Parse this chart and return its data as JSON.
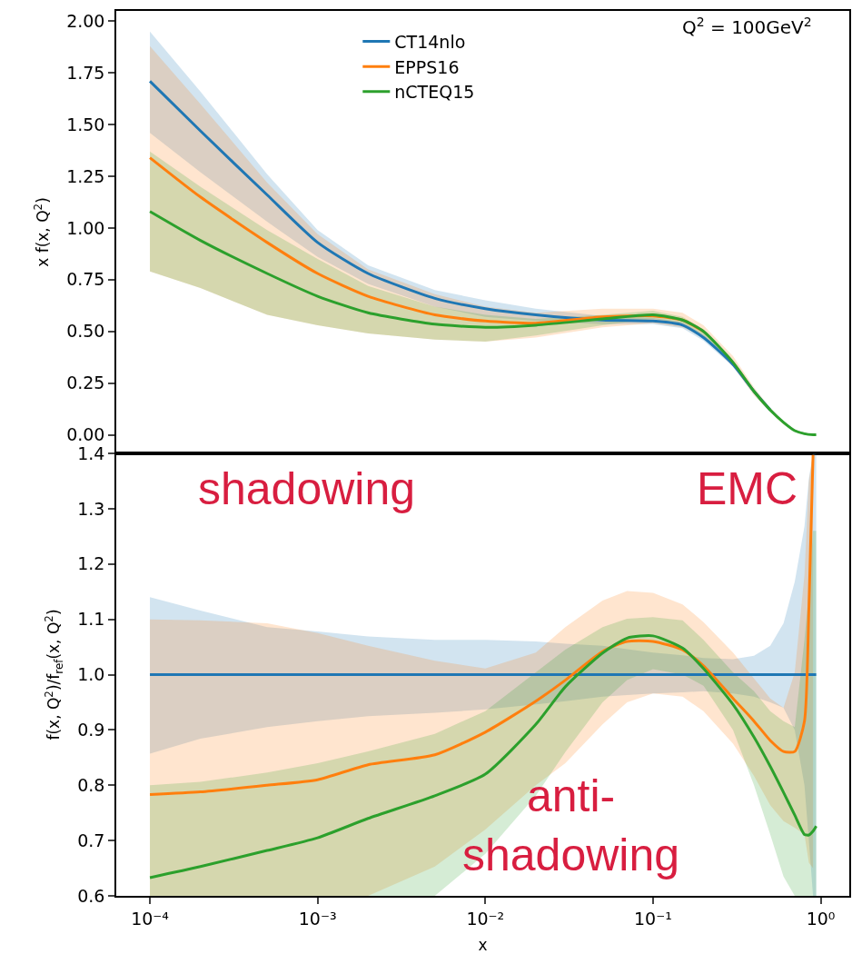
{
  "chart_data": [
    {
      "type": "line",
      "ylabel": "x f(x, Q$^{2}$)",
      "log": "x",
      "xlim": [
        6.3e-05,
        1.48
      ],
      "ylim": [
        -0.09,
        2.05
      ],
      "tick_labels": "y",
      "grid": false,
      "legend": "top",
      "line_style": "solid",
      "marker": "none",
      "yticks": [
        {
          "value": 0,
          "label": "0.00"
        },
        {
          "value": 0.25,
          "label": "0.25"
        },
        {
          "value": 0.5,
          "label": "0.50"
        },
        {
          "value": 0.75,
          "label": "0.75"
        },
        {
          "value": 1,
          "label": "1.00"
        },
        {
          "value": 1.25,
          "label": "1.25"
        },
        {
          "value": 1.5,
          "label": "1.50"
        },
        {
          "value": 1.75,
          "label": "1.75"
        },
        {
          "value": 2,
          "label": "2.00"
        }
      ],
      "annotations": [
        "Q$^{2}$ = 100GeV$^{2}$"
      ],
      "x": [
        0.0001,
        0.0002,
        0.0005,
        0.001,
        0.002,
        0.005,
        0.01,
        0.02,
        0.05,
        0.1,
        0.15,
        0.2,
        0.3,
        0.4,
        0.5,
        0.6,
        0.7,
        0.8,
        0.9,
        0.94
      ],
      "series": [
        {
          "name": "CT14nlo",
          "color": "#1f77b4",
          "values": [
            1.71,
            1.47,
            1.16,
            0.93,
            0.78,
            0.66,
            0.61,
            0.58,
            0.555,
            0.55,
            0.53,
            0.47,
            0.34,
            0.21,
            0.12,
            null,
            null,
            null,
            null,
            null
          ],
          "upper": [
            1.95,
            1.66,
            1.26,
            0.99,
            0.82,
            0.7,
            0.65,
            0.61,
            0.575,
            0.565,
            0.545,
            0.485,
            0.35,
            0.22,
            0.13,
            0.065,
            0.025,
            0.01,
            0,
            0
          ],
          "lower": [
            1.46,
            1.27,
            1.03,
            0.86,
            0.73,
            0.62,
            0.57,
            0.55,
            0.535,
            0.535,
            0.515,
            0.455,
            0.33,
            0.2,
            0.11,
            0.055,
            0.015,
            0,
            0,
            0
          ]
        },
        {
          "name": "EPPS16",
          "color": "#ff7f0e",
          "values": [
            1.34,
            1.15,
            0.93,
            0.78,
            0.67,
            0.58,
            0.55,
            0.54,
            0.57,
            0.575,
            0.555,
            0.5,
            null,
            null,
            null,
            null,
            null,
            null,
            null,
            null
          ],
          "upper": [
            1.88,
            1.6,
            1.22,
            0.97,
            0.8,
            0.68,
            0.62,
            0.59,
            0.61,
            0.61,
            0.59,
            0.53,
            0.38,
            0.23,
            0.13,
            0.065,
            0.025,
            0.01,
            0,
            0
          ],
          "lower": [
            0.79,
            0.71,
            0.58,
            0.53,
            0.49,
            0.46,
            0.45,
            0.47,
            0.52,
            0.54,
            0.52,
            0.47,
            0.33,
            0.19,
            0.11,
            0.05,
            0.015,
            0,
            0,
            0
          ]
        },
        {
          "name": "nCTEQ15",
          "color": "#2ca02c",
          "values": [
            1.08,
            0.94,
            0.78,
            0.67,
            0.59,
            0.535,
            0.52,
            0.53,
            0.56,
            0.58,
            0.555,
            0.5,
            0.35,
            0.21,
            0.12,
            0.06,
            0.02,
            0.005,
            0,
            0
          ],
          "upper": [
            1.37,
            1.2,
            0.99,
            0.85,
            0.72,
            0.62,
            0.58,
            0.56,
            0.58,
            0.6,
            0.57,
            0.51,
            0.36,
            0.22,
            0.13,
            0.065,
            0.025,
            0.01,
            0,
            0
          ],
          "lower": [
            0.79,
            0.71,
            0.58,
            0.53,
            0.49,
            0.46,
            0.45,
            0.48,
            0.53,
            0.56,
            0.54,
            0.48,
            0.34,
            0.2,
            0.11,
            0.055,
            0.015,
            0,
            0,
            0
          ]
        }
      ]
    },
    {
      "type": "line",
      "xlabel": "x",
      "ylabel": "f(x, Q$^{2}$)/f$_{ref}$(x, Q$^{2}$)",
      "log": "x",
      "xlim": [
        6.3e-05,
        1.48
      ],
      "ylim": [
        0.6,
        1.4
      ],
      "grid": false,
      "line_style": "solid",
      "marker": "none",
      "xticks": [
        {
          "value": 0.0001,
          "label": "10⁻⁴"
        },
        {
          "value": 0.001,
          "label": "10⁻³"
        },
        {
          "value": 0.01,
          "label": "10⁻²"
        },
        {
          "value": 0.1,
          "label": "10⁻¹"
        },
        {
          "value": 1,
          "label": "10⁰"
        }
      ],
      "yticks": [
        {
          "value": 0.6,
          "label": "0.6"
        },
        {
          "value": 0.7,
          "label": "0.7"
        },
        {
          "value": 0.8,
          "label": "0.8"
        },
        {
          "value": 0.9,
          "label": "0.9"
        },
        {
          "value": 1.0,
          "label": "1.0"
        },
        {
          "value": 1.1,
          "label": "1.1"
        },
        {
          "value": 1.2,
          "label": "1.2"
        },
        {
          "value": 1.3,
          "label": "1.3"
        },
        {
          "value": 1.4,
          "label": "1.4"
        }
      ],
      "annotations": [
        "shadowing",
        "EMC",
        "anti-\nshadowing"
      ],
      "x": [
        0.0001,
        0.0002,
        0.0005,
        0.001,
        0.002,
        0.005,
        0.01,
        0.02,
        0.03,
        0.05,
        0.07,
        0.1,
        0.15,
        0.2,
        0.3,
        0.4,
        0.5,
        0.6,
        0.7,
        0.8,
        0.85,
        0.9,
        0.94
      ],
      "series": [
        {
          "color": "#1f77b4",
          "values": [
            1,
            1,
            1,
            1,
            1,
            1,
            1,
            1,
            1,
            1,
            1,
            1,
            1,
            1,
            1,
            1,
            1,
            1,
            1,
            1,
            1,
            1,
            1
          ],
          "upper": [
            1.14,
            1.116,
            1.086,
            1.078,
            1.069,
            1.063,
            1.063,
            1.06,
            1.056,
            1.052,
            1.046,
            1.04,
            1.035,
            1.03,
            1.028,
            1.034,
            1.052,
            1.093,
            1.168,
            1.268,
            1.355,
            1.4,
            1.4
          ],
          "lower": [
            0.857,
            0.884,
            0.905,
            0.916,
            0.925,
            0.931,
            0.937,
            0.946,
            0.952,
            0.96,
            0.963,
            0.966,
            0.968,
            0.97,
            0.966,
            0.96,
            0.95,
            0.94,
            0.9,
            0.8,
            0.7,
            0.6,
            0.6
          ]
        },
        {
          "color": "#ff7f0e",
          "x": [
            0.0001,
            0.0002,
            0.0005,
            0.001,
            0.002,
            0.005,
            0.01,
            0.02,
            0.03,
            0.05,
            0.07,
            0.1,
            0.15,
            0.2,
            0.3,
            0.4,
            0.5,
            0.6,
            0.7,
            0.8,
            0.85,
            0.9
          ],
          "values": [
            0.783,
            0.788,
            0.8,
            0.81,
            0.837,
            0.855,
            0.896,
            0.952,
            0.99,
            1.042,
            1.06,
            1.06,
            1.045,
            1.016,
            0.957,
            0.916,
            0.881,
            0.861,
            0.861,
            0.916,
            1.12,
            1.397
          ],
          "upper": [
            1.1,
            1.098,
            1.093,
            1.075,
            1.052,
            1.025,
            1.011,
            1.04,
            1.086,
            1.134,
            1.151,
            1.148,
            1.127,
            1.095,
            1.04,
            0.993,
            0.957,
            0.94,
            1.004,
            1.18,
            1.35,
            1.4
          ],
          "lower": [
            0.6,
            0.6,
            0.6,
            0.6,
            0.6,
            0.653,
            0.72,
            0.8,
            0.84,
            0.91,
            0.95,
            0.966,
            0.96,
            0.934,
            0.875,
            0.817,
            0.764,
            0.735,
            0.723,
            0.711,
            0.66,
            0.65
          ]
        },
        {
          "color": "#2ca02c",
          "values": [
            0.633,
            0.653,
            0.682,
            0.705,
            0.74,
            0.781,
            0.82,
            0.91,
            0.978,
            1.039,
            1.066,
            1.07,
            1.048,
            1.011,
            0.946,
            0.887,
            0.834,
            0.787,
            0.746,
            0.711,
            0.71,
            0.717,
            0.726
          ],
          "upper": [
            0.8,
            0.806,
            0.823,
            0.84,
            0.861,
            0.893,
            0.934,
            1.004,
            1.045,
            1.086,
            1.101,
            1.104,
            1.098,
            1.063,
            1.004,
            0.97,
            0.934,
            0.916,
            0.905,
            1.063,
            1.15,
            1.26,
            1.26
          ],
          "lower": [
            0.6,
            0.6,
            0.6,
            0.6,
            0.6,
            0.6,
            0.676,
            0.781,
            0.86,
            0.95,
            0.99,
            1.01,
            1.0,
            0.98,
            0.9,
            0.8,
            0.711,
            0.635,
            0.6,
            0.6,
            0.6,
            0.6,
            0.6
          ]
        }
      ]
    }
  ]
}
